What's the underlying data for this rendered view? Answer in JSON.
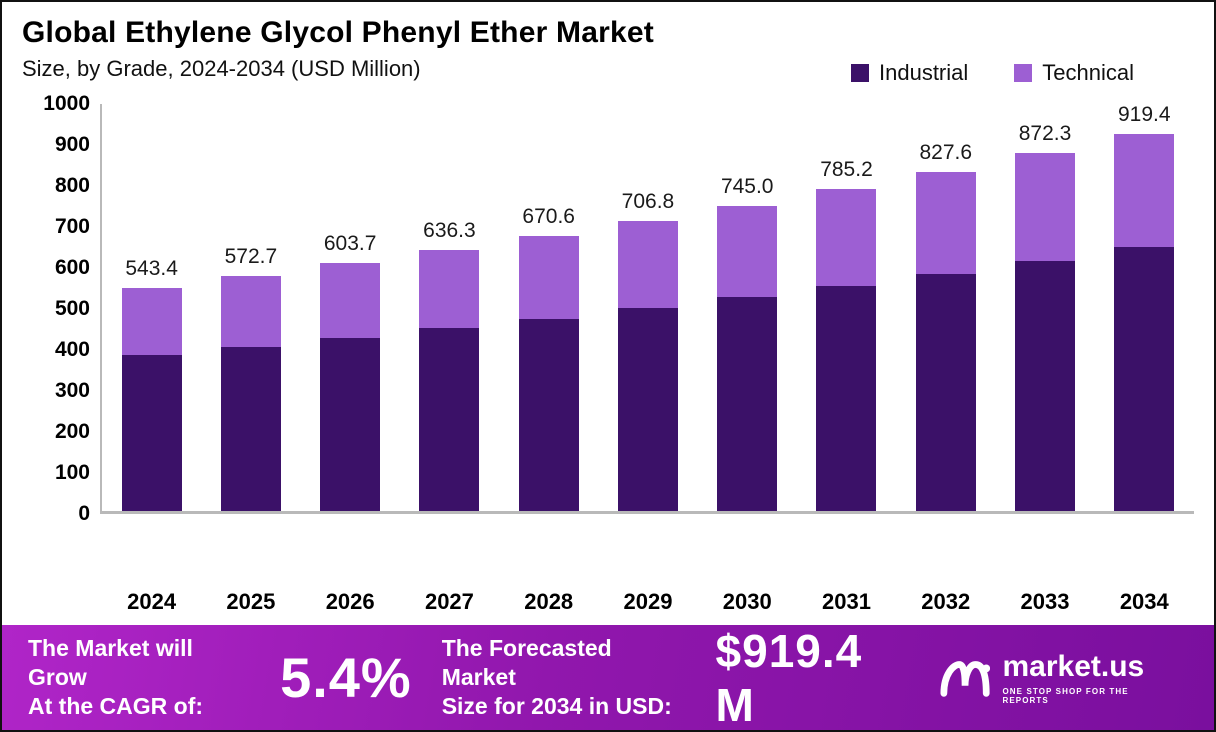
{
  "header": {
    "title": "Global Ethylene Glycol Phenyl Ether Market",
    "subtitle": "Size, by Grade, 2024-2034 (USD Million)"
  },
  "legend": {
    "industrial_label": "Industrial",
    "technical_label": "Technical"
  },
  "colors": {
    "industrial": "#3b1168",
    "technical": "#9d5fd3",
    "banner_gradient_start": "#b025c8",
    "banner_gradient_end": "#7a0f9e"
  },
  "chart_data": {
    "type": "bar",
    "stacked": true,
    "title": "Global Ethylene Glycol Phenyl Ether Market",
    "subtitle": "Size, by Grade, 2024-2034 (USD Million)",
    "xlabel": "",
    "ylabel": "USD Million",
    "ylim": [
      0,
      1000
    ],
    "yticks": [
      0,
      100,
      200,
      300,
      400,
      500,
      600,
      700,
      800,
      900,
      1000
    ],
    "grid": false,
    "legend_position": "top-right",
    "categories": [
      "2024",
      "2025",
      "2026",
      "2027",
      "2028",
      "2029",
      "2030",
      "2031",
      "2032",
      "2033",
      "2034"
    ],
    "series": [
      {
        "name": "Industrial",
        "color": "#3b1168",
        "values": [
          380.4,
          400.9,
          422.6,
          445.4,
          469.4,
          494.8,
          521.5,
          549.6,
          579.3,
          610.6,
          643.6
        ]
      },
      {
        "name": "Technical",
        "color": "#9d5fd3",
        "values": [
          163.0,
          171.8,
          181.1,
          190.9,
          201.2,
          212.0,
          223.5,
          235.6,
          248.3,
          261.7,
          275.8
        ]
      }
    ],
    "totals": [
      543.4,
      572.7,
      603.7,
      636.3,
      670.6,
      706.8,
      745.0,
      785.2,
      827.6,
      872.3,
      919.4
    ],
    "total_labels": [
      "543.4",
      "572.7",
      "603.7",
      "636.3",
      "670.6",
      "706.8",
      "745.0",
      "785.2",
      "827.6",
      "872.3",
      "919.4"
    ]
  },
  "banner": {
    "cagr_line1": "The Market will Grow",
    "cagr_line2": "At the CAGR of:",
    "cagr_value": "5.4%",
    "forecast_line1": "The Forecasted Market",
    "forecast_line2": "Size for 2034 in USD:",
    "forecast_value": "$919.4 M",
    "logo_text": "market.us",
    "logo_tagline": "ONE STOP SHOP FOR THE REPORTS"
  }
}
